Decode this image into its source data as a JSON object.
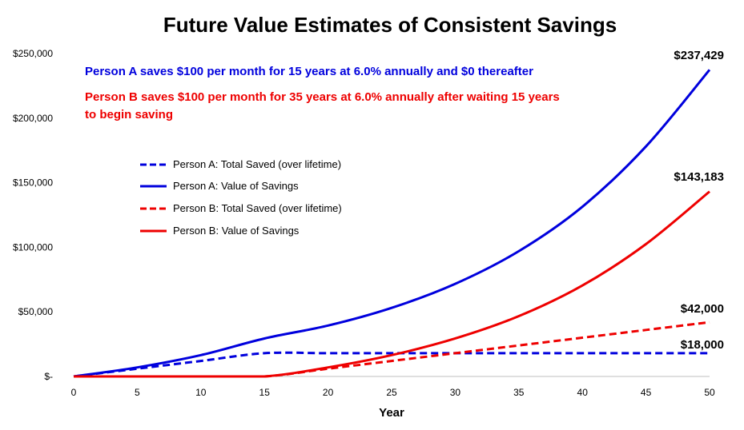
{
  "chart_data": {
    "type": "line",
    "title": "Future Value Estimates of Consistent Savings",
    "xlabel": "Year",
    "ylabel": "",
    "xlim": [
      0,
      50
    ],
    "ylim": [
      0,
      250000
    ],
    "x_ticks": [
      "0",
      "5",
      "10",
      "15",
      "20",
      "25",
      "30",
      "35",
      "40",
      "45",
      "50"
    ],
    "y_ticks": [
      "$-",
      "$50,000",
      "$100,000",
      "$150,000",
      "$200,000",
      "$250,000"
    ],
    "annotations": [
      {
        "text": "Person A saves $100 per month for 15 years at 6.0% annually and $0 thereafter",
        "color": "#0000dd"
      },
      {
        "text": "Person B saves $100 per month for 35 years at 6.0% annually after waiting 15 years",
        "color": "#ee0000"
      },
      {
        "text": "to begin saving",
        "color": "#ee0000"
      }
    ],
    "end_labels": [
      "$237,429",
      "$143,183",
      "$42,000",
      "$18,000"
    ],
    "series": [
      {
        "name": "Person A:  Total Saved (over lifetime)",
        "color": "#0000dd",
        "dash": true,
        "x": [
          0,
          5,
          10,
          15,
          20,
          25,
          30,
          35,
          40,
          45,
          50
        ],
        "values": [
          0,
          6000,
          12000,
          18000,
          18000,
          18000,
          18000,
          18000,
          18000,
          18000,
          18000
        ]
      },
      {
        "name": "Person A:  Value of Savings",
        "color": "#0000dd",
        "dash": false,
        "x": [
          0,
          5,
          10,
          15,
          20,
          25,
          30,
          35,
          40,
          45,
          50
        ],
        "values": [
          0,
          7000,
          16500,
          29400,
          39400,
          53100,
          71700,
          97000,
          131400,
          178100,
          237429
        ]
      },
      {
        "name": "Person B:  Total Saved (over lifetime)",
        "color": "#ee0000",
        "dash": true,
        "x": [
          0,
          5,
          10,
          15,
          20,
          25,
          30,
          35,
          40,
          45,
          50
        ],
        "values": [
          0,
          0,
          0,
          0,
          6000,
          12000,
          18000,
          24000,
          30000,
          36000,
          42000
        ]
      },
      {
        "name": "Person B:  Value of Savings",
        "color": "#ee0000",
        "dash": false,
        "x": [
          0,
          5,
          10,
          15,
          20,
          25,
          30,
          35,
          40,
          45,
          50
        ],
        "values": [
          0,
          0,
          0,
          0,
          7000,
          16500,
          29400,
          46700,
          70400,
          102500,
          143183
        ]
      }
    ]
  }
}
